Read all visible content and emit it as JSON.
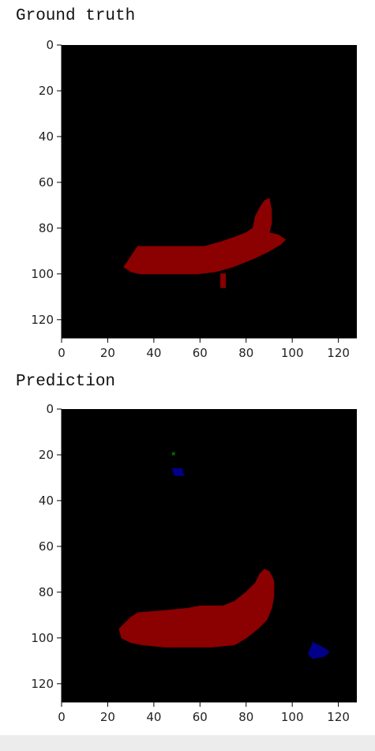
{
  "chart_data": [
    {
      "type": "heatmap",
      "title": "Ground truth",
      "xlabel": "",
      "ylabel": "",
      "xlim": [
        0,
        128
      ],
      "ylim": [
        128,
        0
      ],
      "xticks": [
        0,
        20,
        40,
        60,
        80,
        100,
        120
      ],
      "yticks": [
        0,
        20,
        40,
        60,
        80,
        100,
        120
      ],
      "background_color": "#000000",
      "regions": [
        {
          "class": "red",
          "color": "#8b0000",
          "polygon": [
            [
              27,
              97
            ],
            [
              31,
              91
            ],
            [
              33,
              88
            ],
            [
              46,
              88
            ],
            [
              56,
              88
            ],
            [
              62,
              88
            ],
            [
              69,
              86
            ],
            [
              75,
              84
            ],
            [
              80,
              82
            ],
            [
              83,
              80
            ],
            [
              84,
              75
            ],
            [
              86,
              71
            ],
            [
              88,
              68
            ],
            [
              90,
              67
            ],
            [
              91,
              72
            ],
            [
              91,
              78
            ],
            [
              90,
              82
            ],
            [
              94,
              83
            ],
            [
              97,
              85
            ],
            [
              95,
              87
            ],
            [
              90,
              90
            ],
            [
              84,
              93
            ],
            [
              79,
              95
            ],
            [
              74,
              97
            ],
            [
              67,
              99
            ],
            [
              59,
              100
            ],
            [
              50,
              100
            ],
            [
              40,
              100
            ],
            [
              34,
              100
            ],
            [
              30,
              99
            ]
          ]
        },
        {
          "class": "red",
          "color": "#8b0000",
          "polygon": [
            [
              69,
              100
            ],
            [
              71,
              100
            ],
            [
              71,
              106
            ],
            [
              69,
              106
            ]
          ]
        }
      ]
    },
    {
      "type": "heatmap",
      "title": "Prediction",
      "xlabel": "",
      "ylabel": "",
      "xlim": [
        0,
        128
      ],
      "ylim": [
        128,
        0
      ],
      "xticks": [
        0,
        20,
        40,
        60,
        80,
        100,
        120
      ],
      "yticks": [
        0,
        20,
        40,
        60,
        80,
        100,
        120
      ],
      "background_color": "#000000",
      "regions": [
        {
          "class": "red",
          "color": "#8b0000",
          "polygon": [
            [
              25,
              96
            ],
            [
              30,
              91
            ],
            [
              33,
              89
            ],
            [
              45,
              88
            ],
            [
              55,
              87
            ],
            [
              60,
              86
            ],
            [
              70,
              86
            ],
            [
              75,
              84
            ],
            [
              80,
              80
            ],
            [
              84,
              76
            ],
            [
              86,
              72
            ],
            [
              88,
              70
            ],
            [
              90,
              71
            ],
            [
              92,
              75
            ],
            [
              92,
              82
            ],
            [
              91,
              87
            ],
            [
              89,
              92
            ],
            [
              85,
              96
            ],
            [
              80,
              100
            ],
            [
              75,
              103
            ],
            [
              65,
              104
            ],
            [
              55,
              104
            ],
            [
              45,
              104
            ],
            [
              35,
              103
            ],
            [
              30,
              102
            ],
            [
              26,
              100
            ]
          ]
        },
        {
          "class": "blue",
          "color": "#00008b",
          "polygon": [
            [
              48,
              26
            ],
            [
              52,
              26
            ],
            [
              53,
              29
            ],
            [
              49,
              29
            ]
          ]
        },
        {
          "class": "blue",
          "color": "#00008b",
          "polygon": [
            [
              107,
              107
            ],
            [
              109,
              102
            ],
            [
              113,
              104
            ],
            [
              116,
              106
            ],
            [
              114,
              108
            ],
            [
              109,
              109
            ]
          ]
        },
        {
          "class": "green",
          "color": "#006400",
          "polygon": [
            [
              48,
              19
            ],
            [
              49,
              19
            ],
            [
              49,
              20
            ],
            [
              48,
              20
            ]
          ]
        }
      ]
    }
  ]
}
